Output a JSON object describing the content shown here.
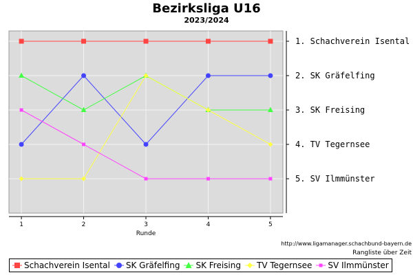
{
  "title": "Bezirksliga U16",
  "subtitle": "2023/2024",
  "source_url": "http://www.ligamanager.schachbund-bayern.de",
  "footnote": "Rangliste über Zeit",
  "chart_data": {
    "type": "line",
    "title": "Bezirksliga U16",
    "subtitle": "2023/2024",
    "xlabel": "Runde",
    "ylabel": "",
    "x": [
      1,
      2,
      3,
      4,
      5
    ],
    "xlim": [
      0.8,
      5.2
    ],
    "ylim": [
      1,
      6
    ],
    "y_inverted": true,
    "grid": true,
    "legend_position": "bottom",
    "right_axis_labels": [
      "1. Schachverein Isental",
      "2. SK Gräfelfing",
      "3. SK Freising",
      "4. TV Tegernsee",
      "5. SV Ilmmünster"
    ],
    "series": [
      {
        "name": "Schachverein Isental",
        "color": "#ff4444",
        "marker": "square",
        "values": [
          1,
          1,
          1,
          1,
          1
        ]
      },
      {
        "name": "SK Gräfelfing",
        "color": "#4444ff",
        "marker": "circle",
        "values": [
          4,
          2,
          4,
          2,
          2
        ]
      },
      {
        "name": "SK Freising",
        "color": "#44ff44",
        "marker": "triangle",
        "values": [
          2,
          3,
          2,
          3,
          3
        ]
      },
      {
        "name": "TV Tegernsee",
        "color": "#ffff44",
        "marker": "diamond",
        "values": [
          5,
          5,
          2,
          3,
          4
        ]
      },
      {
        "name": "SV Ilmmünster",
        "color": "#ff44ff",
        "marker": "small-square",
        "values": [
          3,
          4,
          5,
          5,
          5
        ]
      }
    ]
  }
}
